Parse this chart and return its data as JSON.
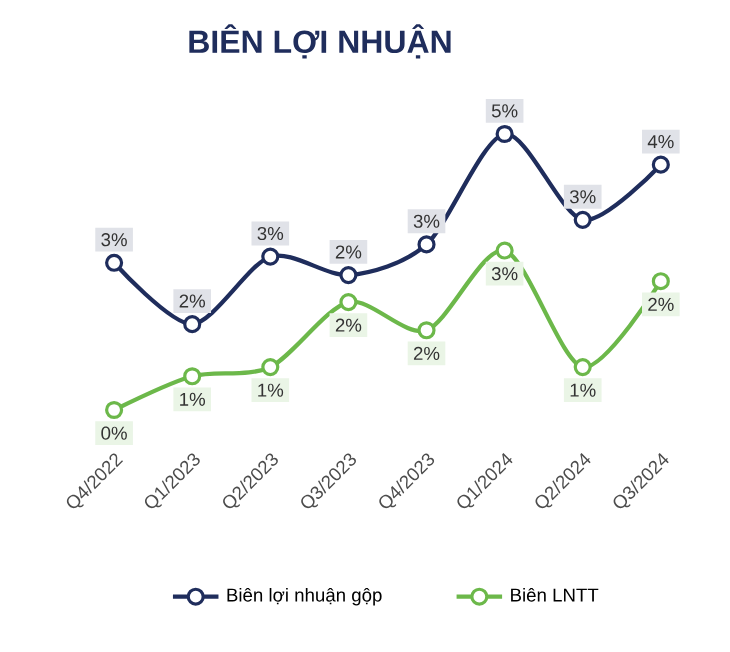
{
  "chart_data": {
    "type": "line",
    "title": "BIÊN LỢI NHUẬN",
    "categories": [
      "Q4/2022",
      "Q1/2023",
      "Q2/2023",
      "Q3/2023",
      "Q4/2023",
      "Q1/2024",
      "Q2/2024",
      "Q3/2024"
    ],
    "tick_labels": "x",
    "marker": "circle",
    "line_style": "solid",
    "legend": "bottom",
    "grid": false,
    "series": [
      {
        "name": "Biên lợi nhuận gộp",
        "color": "#1f2d5c",
        "values": [
          2.6,
          1.6,
          2.7,
          2.4,
          2.9,
          4.7,
          3.3,
          4.2
        ],
        "value_labels": [
          "3%",
          "2%",
          "3%",
          "2%",
          "3%",
          "5%",
          "3%",
          "4%"
        ]
      },
      {
        "name": "Biên LNTT",
        "color": "#6cb84a",
        "values": [
          0.2,
          0.75,
          0.9,
          1.96,
          1.5,
          2.8,
          0.9,
          2.3
        ],
        "value_labels": [
          "0%",
          "1%",
          "1%",
          "2%",
          "2%",
          "3%",
          "1%",
          "2%"
        ]
      }
    ]
  }
}
